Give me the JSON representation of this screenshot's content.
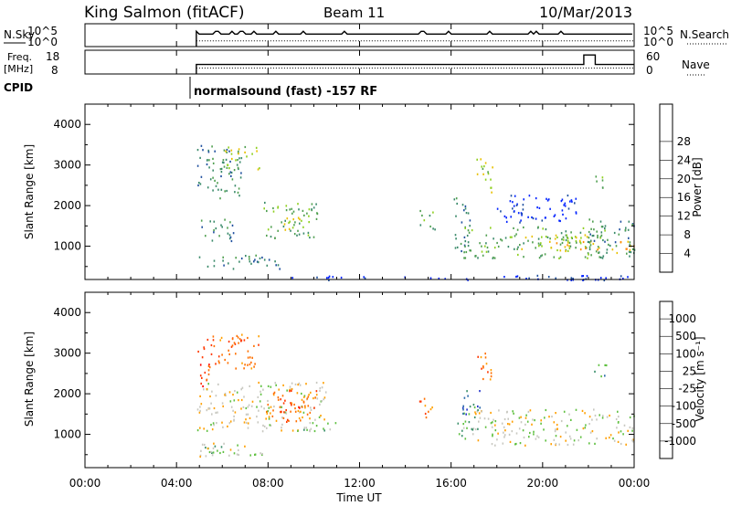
{
  "header": {
    "station": "King Salmon (fitACF)",
    "beam": "Beam 11",
    "date": "10/Mar/2013"
  },
  "aux_panels": {
    "nsky": {
      "label": "N.Sky",
      "ticks": [
        "10^5",
        "10^0"
      ],
      "right_ticks": [
        "10^5",
        "10^0"
      ],
      "right_label": "N.Search"
    },
    "freq": {
      "label_line1": "Freq.",
      "label_line2": "[MHz]",
      "ticks": [
        "18",
        "8"
      ],
      "right_ticks": [
        "60",
        "0"
      ],
      "right_label": "Nave"
    },
    "cpid": {
      "label": "CPID",
      "text": "normalsound (fast) -157 RF"
    }
  },
  "colors": {
    "power": [
      "#0022ff",
      "#1f4f9e",
      "#3a8a6a",
      "#4f9f4f",
      "#8fd020",
      "#e8c000",
      "#ff8c00",
      "#ff5000",
      "#ff0000"
    ],
    "velocity": [
      "#2233cc",
      "#2a6aa8",
      "#3a8f6a",
      "#5fc040",
      "#c8c8c0",
      "#ffa000",
      "#ff7000",
      "#ff3800",
      "#ff0000"
    ],
    "ground_scatter": "#c8c8c0"
  },
  "chart_data": [
    {
      "type": "heatmap",
      "name": "Power",
      "ylabel": "Slant Range [km]",
      "xlabel": "Time UT",
      "xlim": [
        "00:00",
        "24:00"
      ],
      "ylim": [
        180,
        4500
      ],
      "x_ticks": [
        "00:00",
        "04:00",
        "08:00",
        "12:00",
        "16:00",
        "20:00",
        "00:00"
      ],
      "y_ticks": [
        "1000",
        "2000",
        "3000",
        "4000"
      ],
      "colorbar_label": "Power [dB]",
      "colorbar_ticks": [
        "4",
        "8",
        "12",
        "16",
        "20",
        "24",
        "28"
      ],
      "regions": [
        {
          "t0": 4.9,
          "t1": 6.9,
          "r0": 2200,
          "r1": 3500,
          "level": 2
        },
        {
          "t0": 6.0,
          "t1": 7.6,
          "r0": 2900,
          "r1": 3500,
          "level": 4
        },
        {
          "t0": 4.9,
          "t1": 6.5,
          "r0": 1150,
          "r1": 1700,
          "level": 2
        },
        {
          "t0": 7.8,
          "t1": 10.2,
          "r0": 1200,
          "r1": 2100,
          "level": 3
        },
        {
          "t0": 8.6,
          "t1": 9.4,
          "r0": 1400,
          "r1": 1900,
          "level": 5
        },
        {
          "t0": 4.9,
          "t1": 8.5,
          "r0": 450,
          "r1": 800,
          "level": 2
        },
        {
          "t0": 14.6,
          "t1": 15.3,
          "r0": 1400,
          "r1": 1900,
          "level": 3
        },
        {
          "t0": 16.1,
          "t1": 16.8,
          "r0": 900,
          "r1": 2300,
          "level": 2
        },
        {
          "t0": 17.1,
          "t1": 17.8,
          "r0": 2300,
          "r1": 3200,
          "level": 4
        },
        {
          "t0": 16.5,
          "t1": 22.9,
          "r0": 700,
          "r1": 1500,
          "level": 3
        },
        {
          "t0": 19.0,
          "t1": 22.5,
          "r0": 900,
          "r1": 1300,
          "level": 5
        },
        {
          "t0": 22.0,
          "t1": 24.0,
          "r0": 750,
          "r1": 1700,
          "level": 2
        },
        {
          "t0": 23.0,
          "t1": 24.0,
          "r0": 850,
          "r1": 1250,
          "level": 6
        },
        {
          "t0": 18.0,
          "t1": 21.5,
          "r0": 1600,
          "r1": 2300,
          "level": 0
        },
        {
          "t0": 22.2,
          "t1": 22.8,
          "r0": 2400,
          "r1": 2800,
          "level": 3
        },
        {
          "t0": 9.0,
          "t1": 24.0,
          "r0": 180,
          "r1": 300,
          "level": 0
        }
      ]
    },
    {
      "type": "heatmap",
      "name": "Velocity",
      "ylabel": "Slant Range [km]",
      "xlabel": "Time UT",
      "xlim": [
        "00:00",
        "24:00"
      ],
      "ylim": [
        180,
        4500
      ],
      "x_ticks": [
        "00:00",
        "04:00",
        "08:00",
        "12:00",
        "16:00",
        "20:00",
        "00:00"
      ],
      "y_ticks": [
        "1000",
        "2000",
        "3000",
        "4000"
      ],
      "colorbar_label": "Velocity [m s⁻¹]",
      "colorbar_ticks": [
        "1000",
        "500",
        "100",
        "25",
        "-25",
        "-100",
        "-500",
        "-1000"
      ],
      "regions": [
        {
          "t0": 4.9,
          "t1": 10.5,
          "r0": 1100,
          "r1": 2300,
          "level": 4
        },
        {
          "t0": 5.5,
          "t1": 7.6,
          "r0": 2600,
          "r1": 3500,
          "level": 6
        },
        {
          "t0": 4.9,
          "t1": 5.6,
          "r0": 2200,
          "r1": 3400,
          "level": 7
        },
        {
          "t0": 7.8,
          "t1": 10.2,
          "r0": 1300,
          "r1": 2100,
          "level": 6
        },
        {
          "t0": 8.5,
          "t1": 9.5,
          "r0": 1500,
          "r1": 1900,
          "level": 7
        },
        {
          "t0": 9.5,
          "t1": 11.0,
          "r0": 1100,
          "r1": 1400,
          "level": 3
        },
        {
          "t0": 4.9,
          "t1": 8.0,
          "r0": 450,
          "r1": 800,
          "level": 4
        },
        {
          "t0": 5.0,
          "t1": 6.5,
          "r0": 500,
          "r1": 750,
          "level": 3
        },
        {
          "t0": 14.6,
          "t1": 15.3,
          "r0": 1400,
          "r1": 1900,
          "level": 6
        },
        {
          "t0": 16.2,
          "t1": 17.2,
          "r0": 850,
          "r1": 1700,
          "level": 3
        },
        {
          "t0": 16.3,
          "t1": 17.3,
          "r0": 1500,
          "r1": 2100,
          "level": 1
        },
        {
          "t0": 17.1,
          "t1": 17.8,
          "r0": 2300,
          "r1": 3100,
          "level": 6
        },
        {
          "t0": 17.0,
          "t1": 24.0,
          "r0": 750,
          "r1": 1650,
          "level": 4
        },
        {
          "t0": 22.2,
          "t1": 22.8,
          "r0": 2400,
          "r1": 2800,
          "level": 2
        }
      ]
    }
  ],
  "aux_series": {
    "nsky_level": 0.55,
    "nsearch_level": 0.25,
    "freq_level": 0.4,
    "nave_level": 0.25,
    "data_start": "04:52",
    "freq_step": {
      "t0": 21.8,
      "t1": 22.3,
      "level": 0.8
    }
  }
}
